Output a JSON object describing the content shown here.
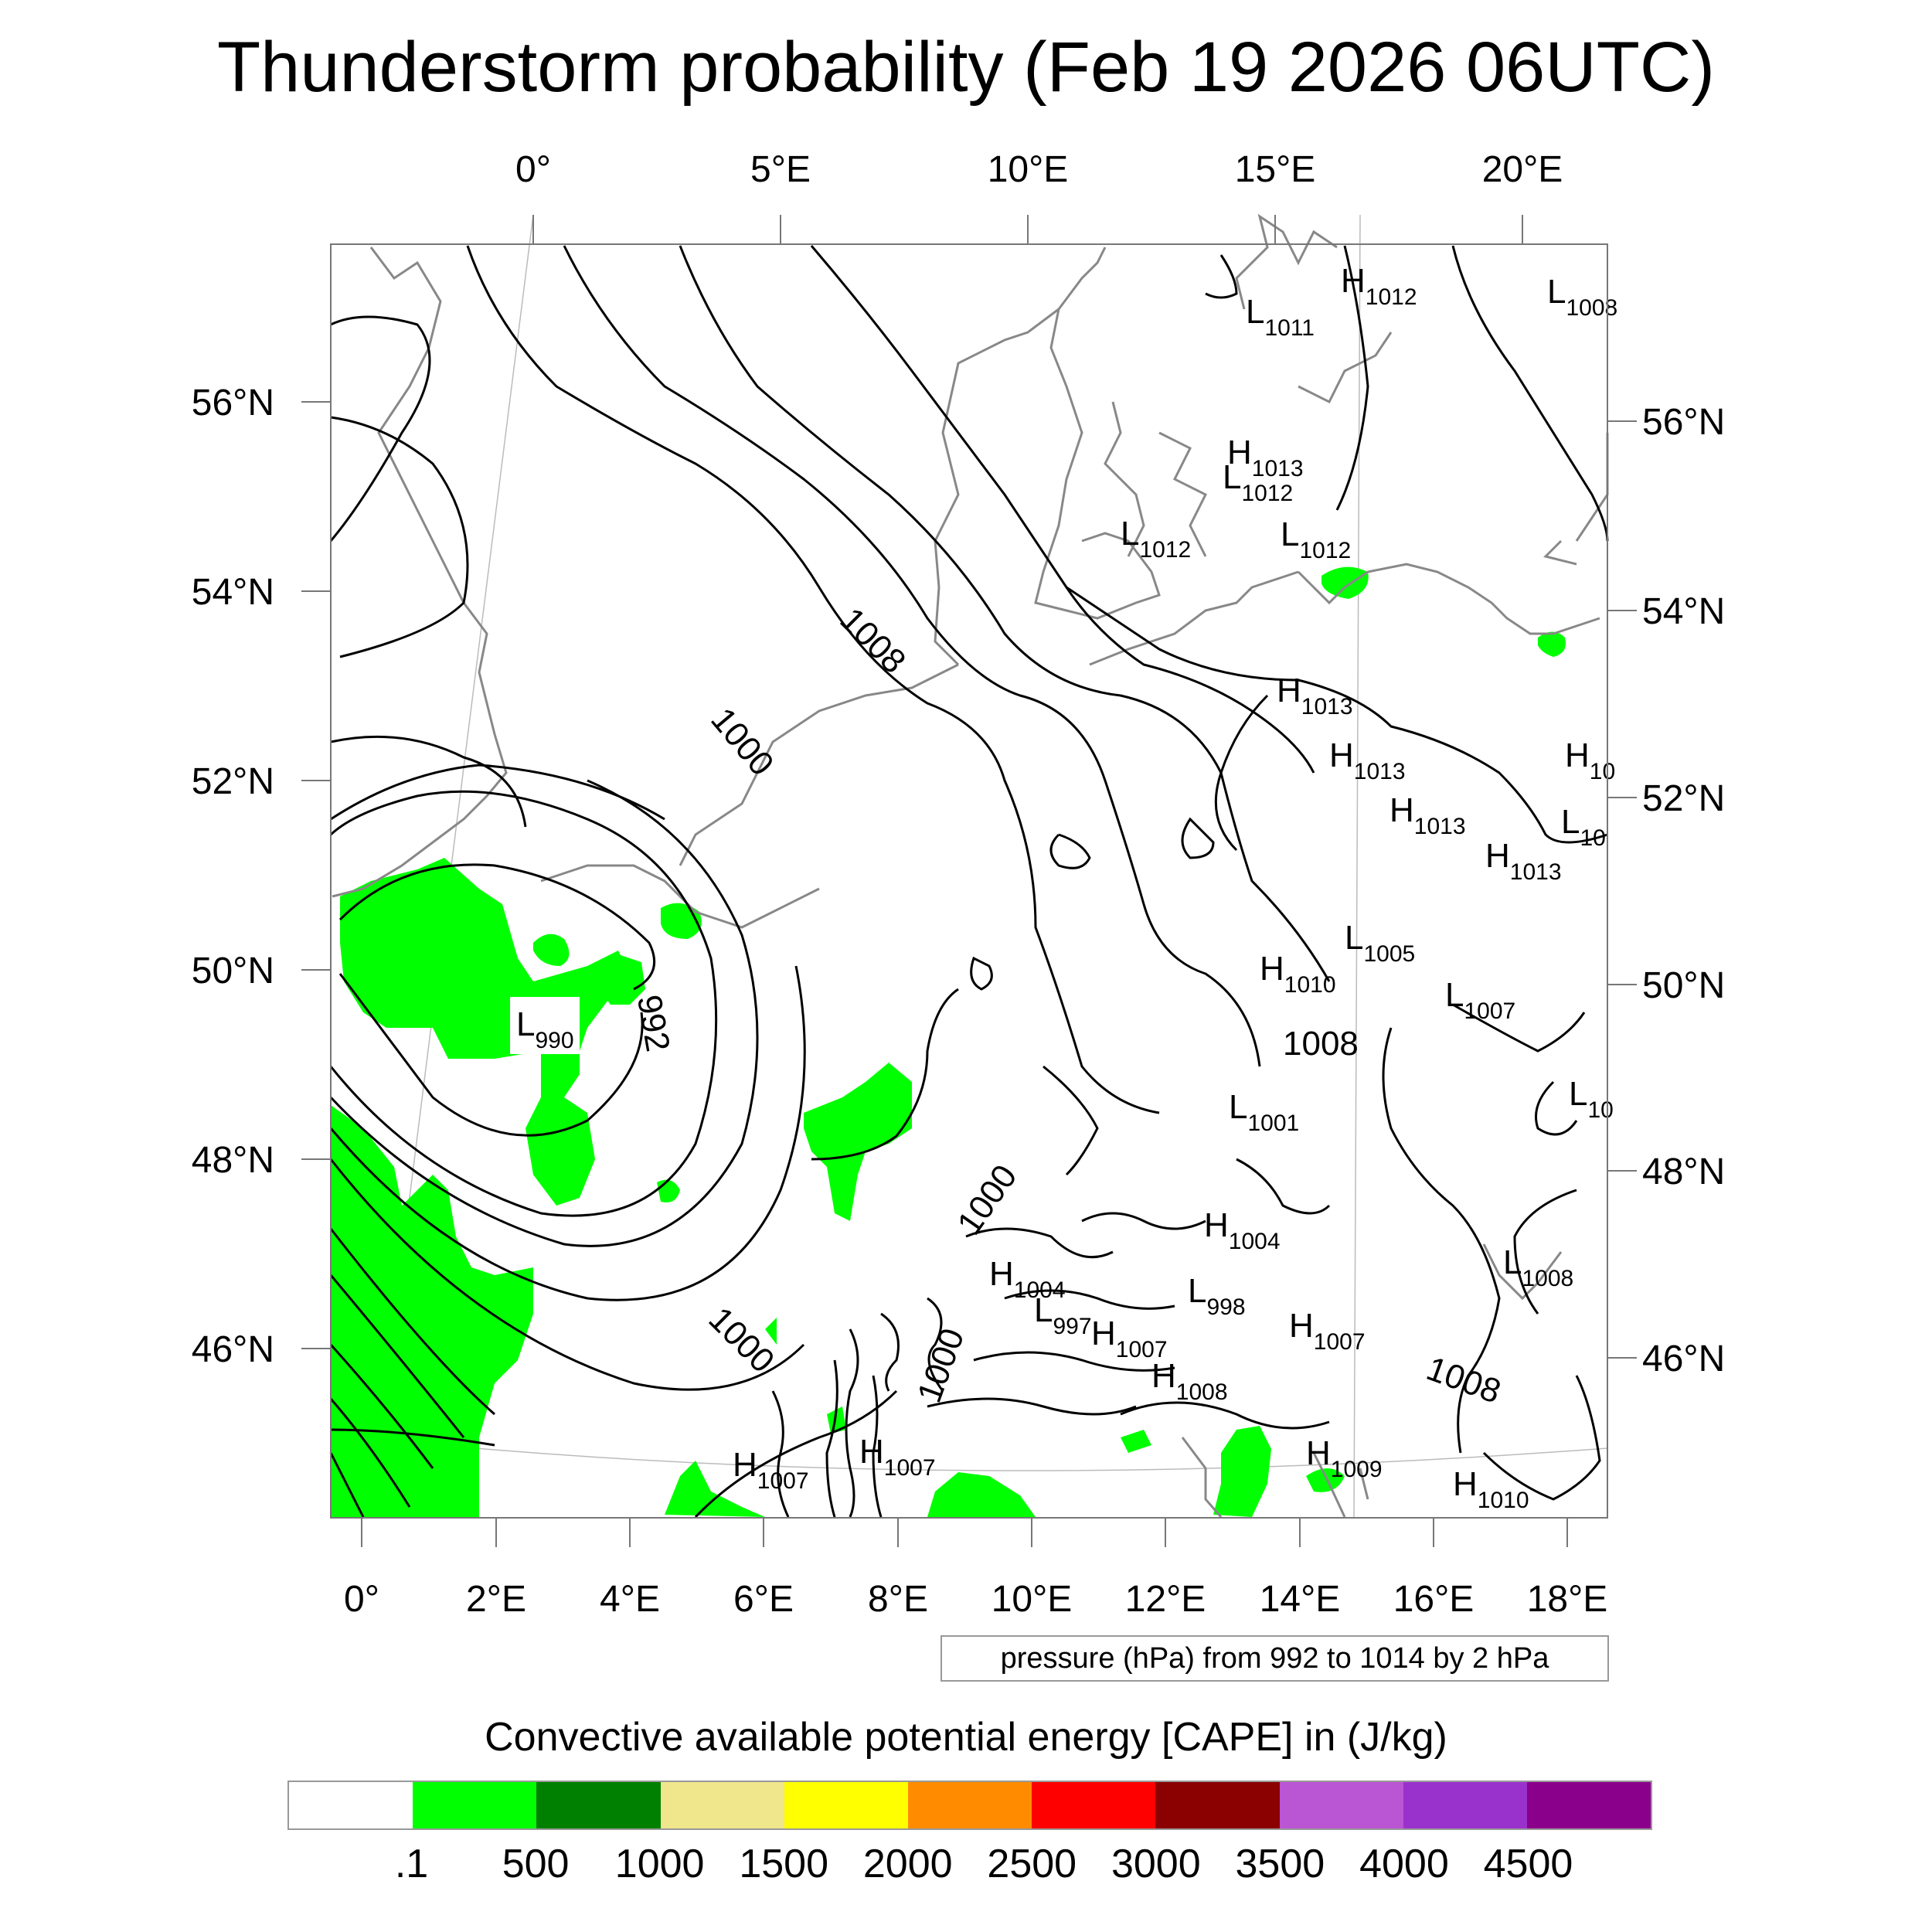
{
  "title": "Thunderstorm probability (Feb 19 2026 06UTC)",
  "top_lon_labels": [
    "0°",
    "5°E",
    "10°E",
    "15°E",
    "20°E"
  ],
  "bottom_lon_labels": [
    "0°",
    "2°E",
    "4°E",
    "6°E",
    "8°E",
    "10°E",
    "12°E",
    "14°E",
    "16°E",
    "18°E"
  ],
  "left_lat_labels": [
    "56°N",
    "54°N",
    "52°N",
    "50°N",
    "48°N",
    "46°N"
  ],
  "right_lat_labels": [
    "56°N",
    "54°N",
    "52°N",
    "50°N",
    "48°N",
    "46°N"
  ],
  "contour_labels": [
    "1008",
    "1000",
    "992",
    "1000",
    "1000",
    "1000",
    "1008",
    "1008"
  ],
  "pressure_centers": [
    {
      "letter": "H",
      "value": "1012"
    },
    {
      "letter": "L",
      "value": "1011"
    },
    {
      "letter": "L",
      "value": "1008"
    },
    {
      "letter": "H",
      "value": "1013"
    },
    {
      "letter": "L",
      "value": "1012"
    },
    {
      "letter": "L",
      "value": "1012"
    },
    {
      "letter": "L",
      "value": "1012"
    },
    {
      "letter": "H",
      "value": "1013"
    },
    {
      "letter": "H",
      "value": "1013"
    },
    {
      "letter": "H",
      "value": "10"
    },
    {
      "letter": "H",
      "value": "1013"
    },
    {
      "letter": "L",
      "value": "10"
    },
    {
      "letter": "H",
      "value": "1013"
    },
    {
      "letter": "L",
      "value": "1005"
    },
    {
      "letter": "H",
      "value": "1010"
    },
    {
      "letter": "L",
      "value": "1007"
    },
    {
      "letter": "L",
      "value": "990"
    },
    {
      "letter": "L",
      "value": "10"
    },
    {
      "letter": "L",
      "value": "1001"
    },
    {
      "letter": "H",
      "value": "1004"
    },
    {
      "letter": "L",
      "value": "1008"
    },
    {
      "letter": "H",
      "value": "1004"
    },
    {
      "letter": "L",
      "value": "998"
    },
    {
      "letter": "L",
      "value": "997"
    },
    {
      "letter": "H",
      "value": "1007"
    },
    {
      "letter": "H",
      "value": "1007"
    },
    {
      "letter": "H",
      "value": "1008"
    },
    {
      "letter": "H",
      "value": "1007"
    },
    {
      "letter": "H",
      "value": "1007"
    },
    {
      "letter": "H",
      "value": "1009"
    },
    {
      "letter": "H",
      "value": "1010"
    }
  ],
  "pressure_note": "pressure (hPa) from 992 to 1014 by 2 hPa",
  "colorbar": {
    "title": "Convective available potential energy [CAPE] in (J/kg)",
    "colors": [
      "#ffffff",
      "#00ff00",
      "#008000",
      "#f0e68c",
      "#ffff00",
      "#ff8c00",
      "#ff0000",
      "#8b0000",
      "#ba55d3",
      "#9932cc",
      "#8b008b"
    ],
    "labels": [
      ".1",
      "500",
      "1000",
      "1500",
      "2000",
      "2500",
      "3000",
      "3500",
      "4000",
      "4500"
    ]
  },
  "cape_fill_color": "#00ff00"
}
